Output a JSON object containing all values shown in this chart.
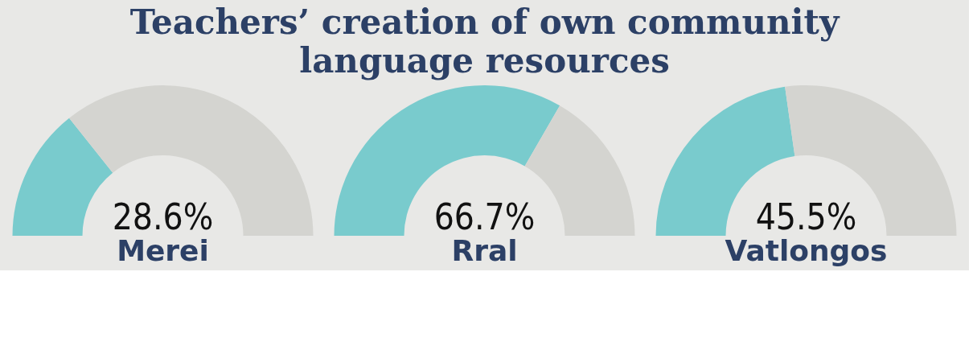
{
  "chart_data": [
    {
      "type": "donut",
      "title": "Teachers’ creation of own community language resources",
      "xlabel": "Merei",
      "categories": [
        null,
        null
      ],
      "values": [
        28.6,
        71.4
      ],
      "colors": [
        "#79cbcd",
        "#d4d4d0"
      ],
      "annotations": [
        "28.6%"
      ]
    },
    {
      "type": "donut",
      "xlabel": "Rral",
      "categories": [
        null,
        null
      ],
      "values": [
        66.7,
        33.3
      ],
      "colors": [
        "#79cbcd",
        "#d4d4d0"
      ],
      "annotations": [
        "66.7%"
      ]
    },
    {
      "type": "donut",
      "xlabel": "Vatlongos",
      "categories": [
        null,
        null
      ],
      "values": [
        45.5,
        54.5
      ],
      "colors": [
        "#79cbcd",
        "#d4d4d0"
      ],
      "annotations": [
        "45.5%"
      ]
    }
  ]
}
